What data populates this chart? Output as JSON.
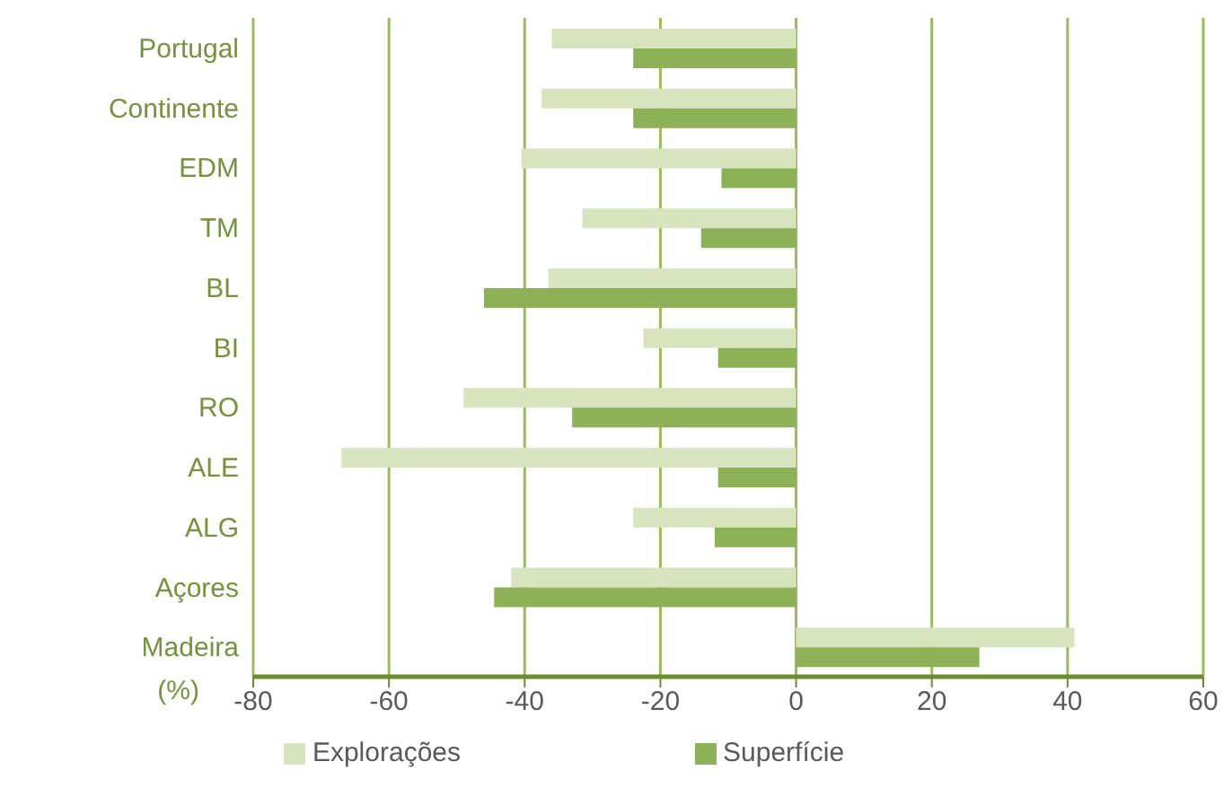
{
  "chart_data": {
    "type": "bar",
    "orientation": "horizontal",
    "xlabel": "(%)",
    "categories": [
      "Portugal",
      "Continente",
      "EDM",
      "TM",
      "BL",
      "BI",
      "RO",
      "ALE",
      "ALG",
      "Açores",
      "Madeira"
    ],
    "series": [
      {
        "name": "Explorações",
        "color": "#d7e4bd",
        "values": [
          -36,
          -37.5,
          -40.5,
          -31.5,
          -36.5,
          -22.5,
          -49,
          -67,
          -24,
          -42,
          41
        ]
      },
      {
        "name": "Superfície",
        "color": "#8db157",
        "values": [
          -24,
          -24,
          -11,
          -14,
          -46,
          -11.5,
          -33,
          -11.5,
          -12,
          -44.5,
          27
        ]
      }
    ],
    "xlim": [
      -80,
      60
    ],
    "xticks": [
      -80,
      -60,
      -40,
      -20,
      0,
      20,
      40,
      60
    ],
    "grid": "x",
    "legend": "bottom"
  }
}
